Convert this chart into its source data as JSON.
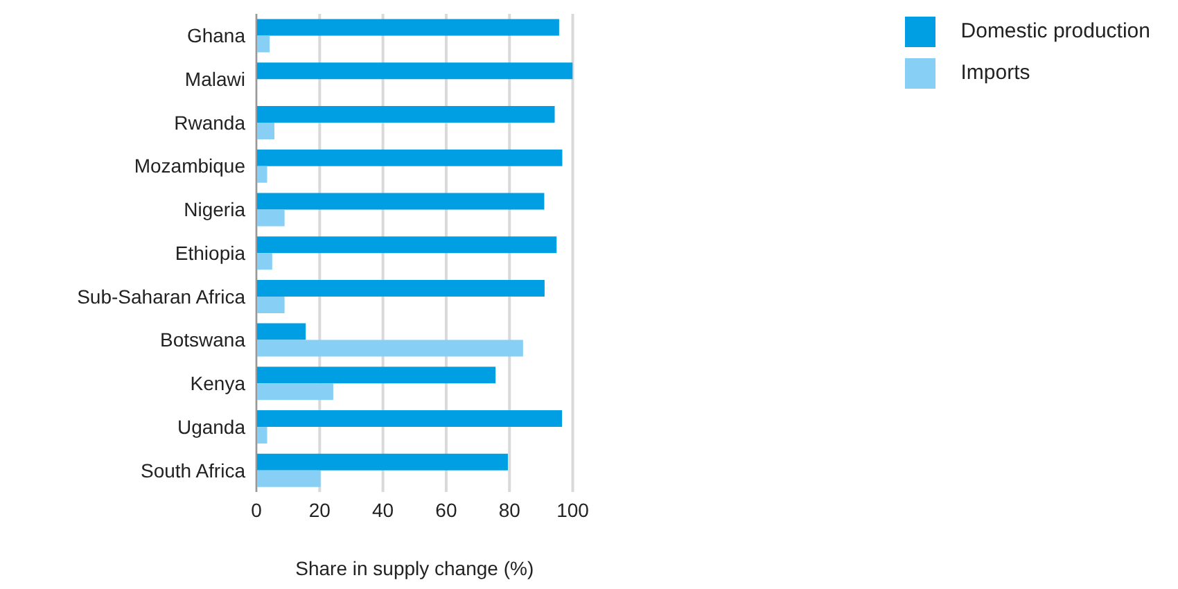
{
  "chart_data": {
    "type": "bar",
    "orientation": "horizontal",
    "xlabel": "Share in supply change (%)",
    "categories": [
      "Ghana",
      "Malawi",
      "Rwanda",
      "Mozambique",
      "Nigeria",
      "Ethiopia",
      "Sub-Saharan Africa",
      "Botswana",
      "Kenya",
      "Uganda",
      "South Africa"
    ],
    "series": [
      {
        "name": "Domestic production",
        "color": "#009fe3",
        "values": [
          95.7,
          100,
          94.3,
          96.7,
          91.0,
          94.9,
          91.1,
          15.6,
          75.6,
          96.6,
          79.5
        ]
      },
      {
        "name": "Imports",
        "color": "#87cff5",
        "values": [
          4.2,
          0,
          5.7,
          3.4,
          8.9,
          5.0,
          8.9,
          84.3,
          24.3,
          3.4,
          20.3
        ]
      }
    ],
    "xlim": [
      0,
      100
    ],
    "xticks": [
      0,
      20,
      40,
      60,
      80,
      100
    ],
    "grid": "x",
    "legend": "top right"
  }
}
